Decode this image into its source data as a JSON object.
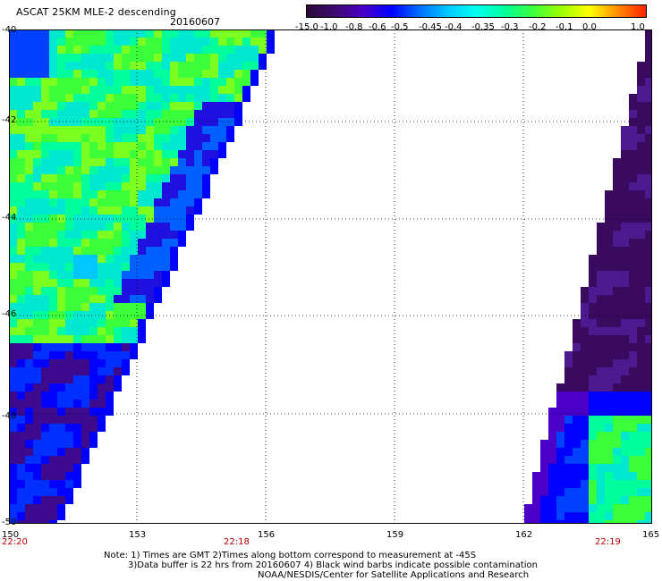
{
  "header": {
    "title": "ASCAT 25KM MLE-2 descending",
    "date": "20160607"
  },
  "colorbar": {
    "labels": [
      "-15.0",
      "-1.0",
      "-0.8",
      "-0.6",
      "-0.5",
      "-0.45",
      "-0.4",
      "-0.35",
      "-0.3",
      "-0.2",
      "-0.1",
      "0.0",
      "1.0"
    ],
    "colors": [
      "#2a0a3a",
      "#3d0a6e",
      "#4b00c8",
      "#0000ff",
      "#0070ff",
      "#00c8ff",
      "#00ffee",
      "#00ff9c",
      "#3cff3c",
      "#9cff00",
      "#ffff00",
      "#ff8c00",
      "#ff2200"
    ]
  },
  "map": {
    "lat_labels": [
      "-40",
      "-42",
      "-44",
      "-46",
      "-48",
      "-50"
    ],
    "lon_labels": [
      "150",
      "153",
      "156",
      "159",
      "162",
      "165"
    ],
    "time_labels": [
      "22:20",
      "22:18",
      "22:19"
    ],
    "lat_range": [
      -50,
      -40
    ],
    "lon_range": [
      150,
      165
    ],
    "grid": "dotted"
  },
  "notes": {
    "line1": "Note: 1) Times are GMT 2)Times along bottom correspond to measurement at -45S",
    "line2": "3)Data buffer is 22 hrs from 20160607 4) Black wind barbs indicate possible contamination",
    "line3": "NOAA/NESDIS/Center for Satellite Applications and Research"
  }
}
